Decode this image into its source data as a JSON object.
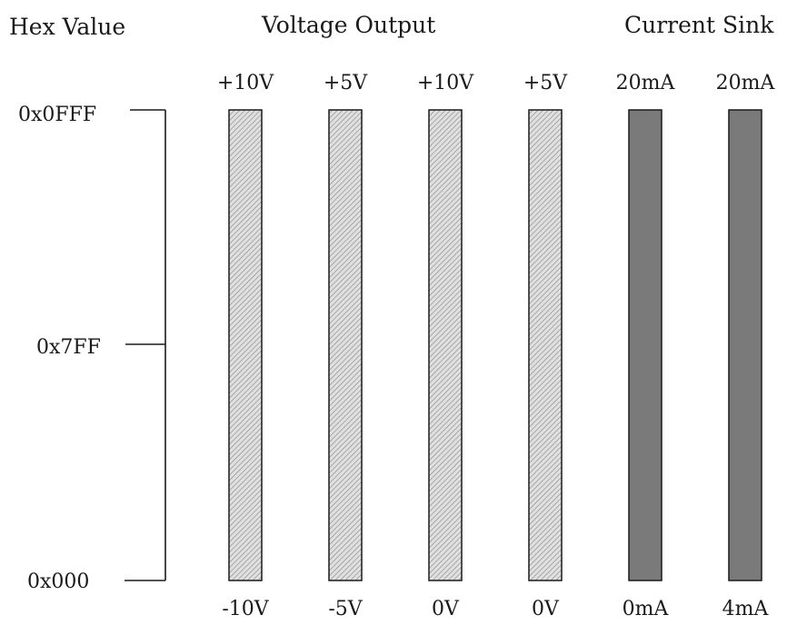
{
  "headings": {
    "hex_value": "Hex Value",
    "voltage_output": "Voltage Output",
    "current_sink": "Current Sink"
  },
  "hex_scale": {
    "top": "0x0FFF",
    "mid": "0x7FF",
    "bottom": "0x000"
  },
  "columns": [
    {
      "top": "+10V",
      "bottom": "-10V",
      "kind": "voltage"
    },
    {
      "top": "+5V",
      "bottom": "-5V",
      "kind": "voltage"
    },
    {
      "top": "+10V",
      "bottom": "0V",
      "kind": "voltage"
    },
    {
      "top": "+5V",
      "bottom": "0V",
      "kind": "voltage"
    },
    {
      "top": "20mA",
      "bottom": "0mA",
      "kind": "current"
    },
    {
      "top": "20mA",
      "bottom": "4mA",
      "kind": "current"
    }
  ],
  "colors": {
    "voltage_fill": "#e0e0e0",
    "voltage_hatch": "#8a8a8a",
    "current_fill": "#7a7a7a",
    "outline": "#1a1a1a"
  }
}
